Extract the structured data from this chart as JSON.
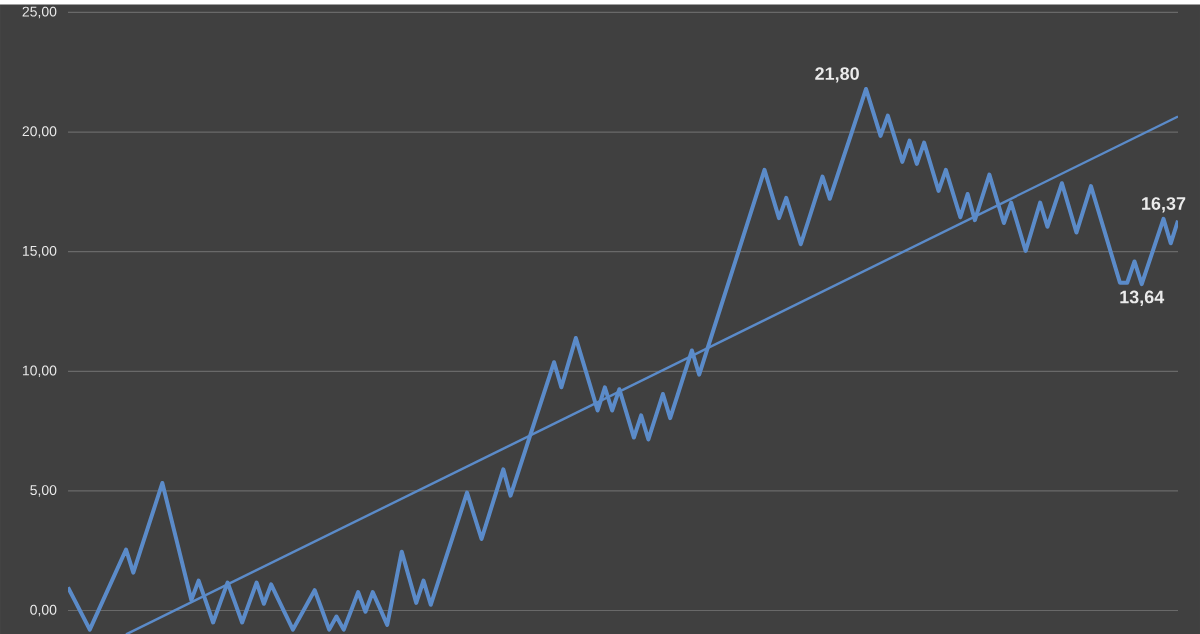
{
  "chart_data": {
    "type": "line",
    "ylim": [
      -1,
      25
    ],
    "categories": [
      null,
      null,
      null,
      null,
      null,
      null,
      null,
      null,
      null,
      null,
      null,
      null,
      null,
      null,
      null,
      null,
      null,
      null,
      null,
      null,
      null,
      null,
      null,
      null,
      null,
      null,
      null,
      null,
      null,
      null,
      null,
      null,
      null,
      null,
      null,
      null,
      null,
      null,
      null,
      null,
      null,
      null,
      null,
      null,
      null,
      null,
      null,
      null,
      null,
      null,
      null,
      null,
      null,
      null,
      null,
      null,
      null,
      null,
      null,
      null,
      null,
      null,
      null,
      null,
      null,
      null,
      null,
      null,
      null,
      null,
      null,
      null,
      null,
      null,
      null,
      null,
      null,
      null,
      null,
      null,
      null,
      null,
      null,
      null,
      null,
      null,
      null,
      null,
      null,
      null,
      null,
      null,
      null,
      null,
      null,
      null,
      null,
      null,
      null,
      null,
      null,
      null,
      null,
      null,
      null,
      null,
      null,
      null,
      null,
      null,
      null,
      null,
      null,
      null,
      null,
      null,
      null,
      null,
      null,
      null,
      null,
      null,
      null,
      null,
      null,
      null,
      null,
      null,
      null,
      null,
      null,
      null,
      null,
      null,
      null,
      null,
      null,
      null,
      null,
      null,
      null,
      null,
      null,
      null,
      null,
      null,
      null,
      null,
      null,
      null,
      null,
      null,
      null,
      null
    ],
    "yticks": [
      {
        "value": 0,
        "label": "0,00"
      },
      {
        "value": 5,
        "label": "5,00"
      },
      {
        "value": 10,
        "label": "10,00"
      },
      {
        "value": 15,
        "label": "15,00"
      },
      {
        "value": 20,
        "label": "20,00"
      },
      {
        "value": 25,
        "label": "25,00"
      }
    ],
    "grid": "y",
    "tick_labels": "y",
    "marker": "none",
    "line_style": "solid",
    "series": [
      {
        "color": "#5b8bc9",
        "values": [
          0.97,
          0.38,
          -0.21,
          -0.8,
          -0.13,
          0.54,
          1.21,
          1.88,
          2.55,
          1.58,
          2.52,
          3.45,
          4.39,
          5.33,
          4.11,
          2.89,
          1.66,
          0.44,
          1.25,
          0.38,
          -0.5,
          0.34,
          1.17,
          0.34,
          -0.5,
          0.34,
          1.17,
          0.28,
          1.09,
          0.46,
          -0.17,
          -0.8,
          -0.25,
          0.3,
          0.85,
          0.03,
          -0.8,
          -0.25,
          -0.8,
          -0.02,
          0.77,
          -0.05,
          0.77,
          0.09,
          -0.6,
          0.93,
          2.46,
          1.39,
          0.32,
          1.25,
          0.24,
          1.18,
          2.12,
          3.05,
          3.99,
          4.93,
          3.96,
          2.99,
          3.96,
          4.93,
          5.9,
          4.8,
          5.73,
          6.66,
          7.59,
          8.52,
          9.45,
          10.38,
          9.33,
          10.36,
          11.39,
          10.38,
          9.37,
          8.36,
          9.33,
          8.36,
          9.25,
          8.24,
          7.23,
          8.16,
          7.15,
          8.1,
          9.05,
          8.04,
          8.98,
          9.93,
          10.87,
          9.86,
          10.81,
          11.76,
          12.71,
          13.66,
          14.61,
          15.57,
          16.52,
          17.47,
          18.42,
          17.41,
          16.4,
          17.25,
          16.28,
          15.31,
          16.25,
          17.2,
          18.14,
          17.21,
          18.13,
          19.05,
          19.96,
          20.88,
          21.8,
          20.82,
          19.84,
          20.69,
          19.72,
          18.75,
          19.64,
          18.67,
          19.56,
          18.55,
          17.54,
          18.42,
          17.43,
          16.44,
          17.41,
          16.32,
          17.27,
          18.22,
          17.21,
          16.2,
          17.05,
          16.04,
          15.03,
          16.04,
          17.05,
          16.04,
          16.95,
          17.86,
          16.83,
          15.8,
          16.77,
          17.74,
          16.73,
          15.72,
          14.71,
          13.7,
          13.7,
          14.59,
          13.64,
          14.55,
          15.46,
          16.37,
          15.35,
          16.3
        ],
        "value_labels": [
          null,
          null,
          null,
          null,
          null,
          null,
          null,
          null,
          null,
          null,
          null,
          null,
          null,
          null,
          null,
          null,
          null,
          null,
          null,
          null,
          null,
          null,
          null,
          null,
          null,
          null,
          null,
          null,
          null,
          null,
          null,
          null,
          null,
          null,
          null,
          null,
          null,
          null,
          null,
          null,
          null,
          null,
          null,
          null,
          null,
          null,
          null,
          null,
          null,
          null,
          null,
          null,
          null,
          null,
          null,
          null,
          null,
          null,
          null,
          null,
          null,
          null,
          null,
          null,
          null,
          null,
          null,
          null,
          null,
          null,
          null,
          null,
          null,
          null,
          null,
          null,
          null,
          null,
          null,
          null,
          null,
          null,
          null,
          null,
          null,
          null,
          null,
          null,
          null,
          null,
          null,
          null,
          null,
          null,
          null,
          null,
          null,
          null,
          null,
          null,
          null,
          null,
          null,
          null,
          null,
          null,
          null,
          null,
          null,
          null,
          "21,80",
          null,
          null,
          null,
          null,
          null,
          null,
          null,
          null,
          null,
          null,
          null,
          null,
          null,
          null,
          null,
          null,
          null,
          null,
          null,
          null,
          null,
          null,
          null,
          null,
          null,
          null,
          null,
          null,
          null,
          null,
          null,
          null,
          null,
          null,
          null,
          null,
          null,
          "13,64",
          null,
          null,
          "16,37",
          null,
          null
        ]
      },
      {
        "type": "line",
        "color": "#5b8bc9",
        "values": [
          null,
          null,
          null,
          null,
          null,
          null,
          null,
          null,
          -1,
          null,
          null,
          null,
          null,
          null,
          null,
          null,
          null,
          null,
          null,
          null,
          null,
          null,
          null,
          null,
          null,
          null,
          null,
          null,
          null,
          null,
          null,
          null,
          null,
          null,
          null,
          null,
          null,
          null,
          null,
          null,
          null,
          null,
          null,
          null,
          null,
          null,
          null,
          null,
          null,
          null,
          null,
          null,
          null,
          null,
          null,
          null,
          null,
          null,
          null,
          null,
          null,
          null,
          null,
          null,
          null,
          null,
          null,
          null,
          null,
          null,
          null,
          null,
          null,
          null,
          null,
          null,
          null,
          null,
          null,
          null,
          null,
          null,
          null,
          null,
          null,
          null,
          null,
          null,
          null,
          null,
          null,
          null,
          null,
          null,
          null,
          null,
          null,
          null,
          null,
          null,
          null,
          null,
          null,
          null,
          null,
          null,
          null,
          null,
          null,
          null,
          null,
          null,
          null,
          null,
          null,
          null,
          null,
          null,
          null,
          null,
          null,
          null,
          null,
          null,
          null,
          null,
          null,
          null,
          null,
          null,
          null,
          null,
          null,
          null,
          null,
          null,
          null,
          null,
          null,
          null,
          null,
          null,
          null,
          null,
          null,
          null,
          null,
          null,
          null,
          null,
          null,
          null,
          null,
          20.65
        ]
      }
    ]
  }
}
